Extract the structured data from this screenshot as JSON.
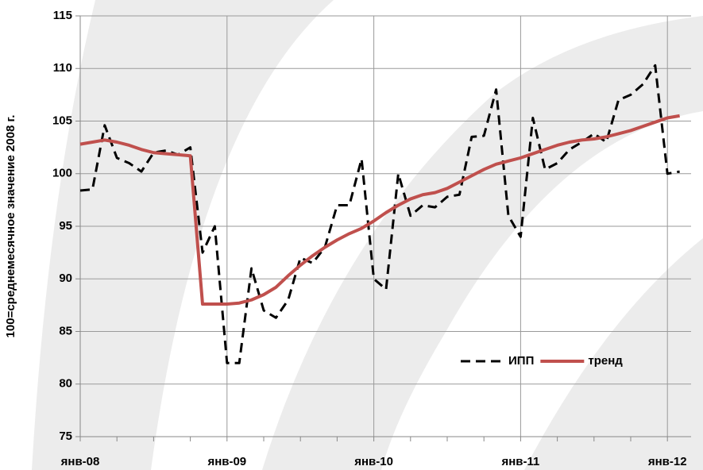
{
  "chart_data": {
    "type": "line",
    "ylabel": "100=среднемесячное значение 2008 г.",
    "categories": [
      "янв-08",
      null,
      null,
      null,
      null,
      null,
      null,
      null,
      null,
      null,
      null,
      null,
      "янв-09",
      null,
      null,
      null,
      null,
      null,
      null,
      null,
      null,
      null,
      null,
      null,
      "янв-10",
      null,
      null,
      null,
      null,
      null,
      null,
      null,
      null,
      null,
      null,
      null,
      "янв-11",
      null,
      null,
      null,
      null,
      null,
      null,
      null,
      null,
      null,
      null,
      null,
      "янв-12",
      null
    ],
    "series": [
      {
        "name": "ИПП",
        "color": "#000000",
        "dash": true,
        "values": [
          98.4,
          98.5,
          104.6,
          101.5,
          101,
          100.2,
          102,
          102.2,
          101.8,
          102.5,
          92.5,
          95,
          82,
          82,
          91,
          87,
          86.3,
          88,
          92,
          91.5,
          93,
          97,
          97,
          101.4,
          90,
          89,
          100,
          96,
          97,
          96.8,
          97.8,
          98,
          103.5,
          103.6,
          108,
          96,
          94,
          105.3,
          100.4,
          101,
          102.3,
          103,
          103.8,
          103,
          107,
          107.5,
          108.5,
          110.3,
          100,
          100.2
        ]
      },
      {
        "name": "тренд",
        "color": "#c0504d",
        "dash": false,
        "values": [
          102.8,
          103,
          103.2,
          103,
          102.7,
          102.3,
          102,
          101.9,
          101.8,
          101.7,
          87.6,
          87.6,
          87.6,
          87.7,
          88.0,
          88.5,
          89.2,
          90.3,
          91.3,
          92.2,
          93.0,
          93.7,
          94.3,
          94.8,
          95.5,
          96.3,
          97.0,
          97.6,
          98.0,
          98.2,
          98.6,
          99.2,
          99.8,
          100.4,
          100.9,
          101.2,
          101.5,
          101.9,
          102.3,
          102.7,
          103.0,
          103.2,
          103.3,
          103.5,
          103.8,
          104.1,
          104.5,
          104.9,
          105.3,
          105.5
        ]
      }
    ],
    "ylim": [
      75,
      115
    ],
    "yticks": [
      75,
      80,
      85,
      90,
      95,
      100,
      105,
      110,
      115
    ],
    "grid": true,
    "legend": "lower right"
  }
}
